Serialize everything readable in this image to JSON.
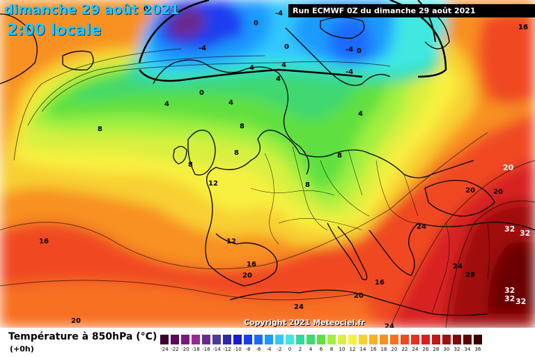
{
  "header": {
    "date_line": "dimanche 29 août 2021",
    "time_line": "2:00 locale",
    "run_info": "Run ECMWF 0Z du dimanche 29 août 2021",
    "copyright": "Copyright 2021 Meteociel.fr"
  },
  "footer": {
    "variable_title": "Température à 850hPa (°C)",
    "forecast_step": "(+0h)"
  },
  "legend": {
    "items": [
      {
        "label": "-24",
        "color": "#3a0030"
      },
      {
        "label": "-22",
        "color": "#5a0a5a"
      },
      {
        "label": "-20",
        "color": "#7a1a7a"
      },
      {
        "label": "-18",
        "color": "#962896"
      },
      {
        "label": "-16",
        "color": "#6a2a8a"
      },
      {
        "label": "-14",
        "color": "#4a3a9a"
      },
      {
        "label": "-12",
        "color": "#2a2aa8"
      },
      {
        "label": "-10",
        "color": "#1a1ad0"
      },
      {
        "label": "-8",
        "color": "#1a3cf0"
      },
      {
        "label": "-6",
        "color": "#1a6aff"
      },
      {
        "label": "-4",
        "color": "#1a9aff"
      },
      {
        "label": "-2",
        "color": "#30c8ff"
      },
      {
        "label": "0",
        "color": "#40e8e0"
      },
      {
        "label": "2",
        "color": "#30d8a0"
      },
      {
        "label": "4",
        "color": "#40d870"
      },
      {
        "label": "6",
        "color": "#60e040"
      },
      {
        "label": "8",
        "color": "#a0f040"
      },
      {
        "label": "10",
        "color": "#d8f040"
      },
      {
        "label": "12",
        "color": "#f8f040"
      },
      {
        "label": "14",
        "color": "#f8d030"
      },
      {
        "label": "16",
        "color": "#f8b020"
      },
      {
        "label": "18",
        "color": "#f89020"
      },
      {
        "label": "20",
        "color": "#f87020"
      },
      {
        "label": "22",
        "color": "#f04a20"
      },
      {
        "label": "24",
        "color": "#e83020"
      },
      {
        "label": "26",
        "color": "#d82020"
      },
      {
        "label": "28",
        "color": "#c01818"
      },
      {
        "label": "30",
        "color": "#a01010"
      },
      {
        "label": "32",
        "color": "#800808"
      },
      {
        "label": "34",
        "color": "#5a0404"
      },
      {
        "label": "36",
        "color": "#3a0000"
      }
    ]
  },
  "contour_labels": [
    "0",
    "-4",
    "-4",
    "-4",
    "0",
    "0",
    "0",
    "-4",
    "16",
    "0",
    "4",
    "4",
    "4",
    "4",
    "4",
    "4",
    "8",
    "8",
    "8",
    "8",
    "8",
    "8",
    "12",
    "12",
    "16",
    "16",
    "16",
    "16",
    "20",
    "20",
    "20",
    "20",
    "20",
    "24",
    "24",
    "24",
    "24",
    "28",
    "32",
    "32",
    "32",
    "32",
    "32",
    "20"
  ]
}
